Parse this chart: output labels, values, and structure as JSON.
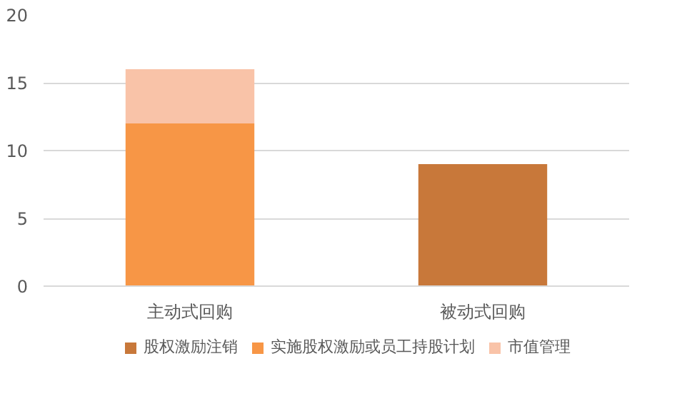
{
  "chart_data": {
    "type": "bar",
    "stacked": true,
    "categories": [
      "主动式回购",
      "被动式回购"
    ],
    "series": [
      {
        "name": "股权激励注销",
        "color": "#c8783a",
        "values": [
          null,
          9
        ]
      },
      {
        "name": "实施股权激励或员工持股计划",
        "color": "#f79646",
        "values": [
          12,
          null
        ]
      },
      {
        "name": "市值管理",
        "color": "#f9c3a8",
        "values": [
          4,
          null
        ]
      }
    ],
    "ylim": [
      0,
      20
    ],
    "yticks": [
      0,
      5,
      10,
      15,
      20
    ],
    "grid": "y",
    "legend": "bottom"
  }
}
